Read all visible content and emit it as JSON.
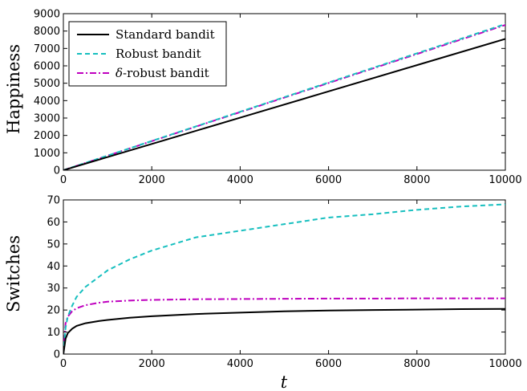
{
  "chart_data": [
    {
      "type": "line",
      "ylabel": "Happiness",
      "xlabel": "",
      "xlim": [
        0,
        10000
      ],
      "ylim": [
        0,
        9000
      ],
      "xticks": [
        "0",
        "2000",
        "4000",
        "6000",
        "8000",
        "10000"
      ],
      "yticks": [
        "0",
        "1000",
        "2000",
        "3000",
        "4000",
        "5000",
        "6000",
        "7000",
        "8000",
        "9000"
      ],
      "legend_position": "top-left",
      "series": [
        {
          "name": "Standard bandit",
          "color": "#000000",
          "style": "solid",
          "x": [
            0,
            2000,
            4000,
            6000,
            8000,
            10000
          ],
          "y": [
            0,
            1510,
            3020,
            4530,
            6040,
            7550
          ]
        },
        {
          "name": "Robust bandit",
          "color": "#17bfbf",
          "style": "dashed",
          "x": [
            0,
            2000,
            4000,
            6000,
            8000,
            10000
          ],
          "y": [
            0,
            1680,
            3360,
            5040,
            6720,
            8400
          ]
        },
        {
          "name": "δ-robust bandit",
          "color": "#bf00bf",
          "style": "dashdot",
          "x": [
            0,
            2000,
            4000,
            6000,
            8000,
            10000
          ],
          "y": [
            0,
            1670,
            3340,
            5010,
            6680,
            8350
          ]
        }
      ]
    },
    {
      "type": "line",
      "ylabel": "Switches",
      "xlabel": "t",
      "xlim": [
        0,
        10000
      ],
      "ylim": [
        0,
        70
      ],
      "xticks": [
        "0",
        "2000",
        "4000",
        "6000",
        "8000",
        "10000"
      ],
      "yticks": [
        "0",
        "10",
        "20",
        "30",
        "40",
        "50",
        "60",
        "70"
      ],
      "series": [
        {
          "name": "Standard bandit",
          "color": "#000000",
          "style": "solid",
          "x": [
            0,
            50,
            100,
            200,
            300,
            500,
            800,
            1000,
            1500,
            2000,
            3000,
            4000,
            5000,
            6000,
            7000,
            8000,
            9000,
            10000
          ],
          "y": [
            0,
            7,
            9.5,
            11.5,
            12.8,
            14,
            15,
            15.5,
            16.5,
            17.2,
            18.2,
            18.8,
            19.4,
            19.8,
            20.0,
            20.2,
            20.4,
            20.5
          ]
        },
        {
          "name": "Robust bandit",
          "color": "#17bfbf",
          "style": "dashed",
          "x": [
            0,
            50,
            100,
            200,
            300,
            500,
            800,
            1000,
            1500,
            2000,
            3000,
            4000,
            5000,
            6000,
            7000,
            8000,
            9000,
            10000
          ],
          "y": [
            0,
            12,
            17,
            22,
            26,
            30.5,
            35,
            38,
            43,
            47,
            53,
            56,
            59,
            62,
            63.5,
            65.5,
            67,
            68
          ]
        },
        {
          "name": "δ-robust bandit",
          "color": "#bf00bf",
          "style": "dashdot",
          "x": [
            0,
            50,
            100,
            200,
            300,
            500,
            800,
            1000,
            1500,
            2000,
            3000,
            4000,
            5000,
            6000,
            7000,
            8000,
            9000,
            10000
          ],
          "y": [
            0,
            14,
            17,
            19.5,
            20.8,
            22.2,
            23.3,
            23.8,
            24.3,
            24.6,
            24.9,
            25.0,
            25.1,
            25.2,
            25.2,
            25.3,
            25.3,
            25.3
          ]
        }
      ]
    }
  ]
}
